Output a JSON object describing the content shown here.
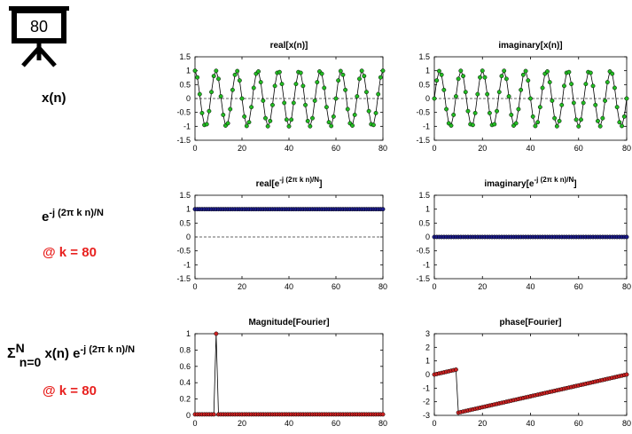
{
  "board_number": "80",
  "labels": {
    "xn": "x(n)",
    "exp_base": "e",
    "exp_sup": "-j (2π k n)/N",
    "k_label": "@ k = 80",
    "sum_sigma": "Σ",
    "sum_top": "N",
    "sum_bottom": "n=0",
    "sum_term": "x(n) e",
    "sum_sup": "-j (2π k n)/N",
    "k_label2": "@ k = 80"
  },
  "colors": {
    "green_marker": "#22bb22",
    "blue_marker": "#1c1c8a",
    "red_marker": "#cc2222",
    "red_text": "#e8211f"
  },
  "chart_data": [
    {
      "type": "line",
      "title": "real[x(n)]",
      "xlim": [
        0,
        80
      ],
      "ylim": [
        -1.5,
        1.5
      ],
      "xticks": [
        "0",
        "20",
        "40",
        "60",
        "80"
      ],
      "yticks": [
        "1.5",
        "1",
        "0.5",
        "0",
        "-0.5",
        "-1",
        "-1.5"
      ],
      "series": [
        {
          "values_rule": "cos(2*pi*9*n/80)",
          "n": [
            0,
            80
          ],
          "marker": "green"
        }
      ],
      "reference_line": 0
    },
    {
      "type": "line",
      "title": "imaginary[x(n)]",
      "xlim": [
        0,
        80
      ],
      "ylim": [
        -1.5,
        1.5
      ],
      "xticks": [
        "0",
        "20",
        "40",
        "60",
        "80"
      ],
      "yticks": [
        "1.5",
        "1",
        "0.5",
        "0",
        "-0.5",
        "-1",
        "-1.5"
      ],
      "series": [
        {
          "values_rule": "sin(2*pi*9*n/80)",
          "n": [
            0,
            80
          ],
          "marker": "green"
        }
      ],
      "reference_line": 0
    },
    {
      "type": "line",
      "title_base": "real[e",
      "title_sup": "-j (2π k n)/N",
      "title_end": "]",
      "xlim": [
        0,
        80
      ],
      "ylim": [
        -1.5,
        1.5
      ],
      "xticks": [
        "0",
        "20",
        "40",
        "60",
        "80"
      ],
      "yticks": [
        "1.5",
        "1",
        "0.5",
        "0",
        "-0.5",
        "-1",
        "-1.5"
      ],
      "series": [
        {
          "values_rule": "constant 1",
          "n": [
            0,
            80
          ],
          "marker": "blue"
        }
      ],
      "reference_line": 0
    },
    {
      "type": "line",
      "title_base": "imaginary[e",
      "title_sup": "-j (2π k n)/N",
      "title_end": "]",
      "xlim": [
        0,
        80
      ],
      "ylim": [
        -1.5,
        1.5
      ],
      "xticks": [
        "0",
        "20",
        "40",
        "60",
        "80"
      ],
      "yticks": [
        "1.5",
        "1",
        "0.5",
        "0",
        "-0.5",
        "-1",
        "-1.5"
      ],
      "series": [
        {
          "values_rule": "constant 0",
          "n": [
            0,
            80
          ],
          "marker": "blue"
        }
      ]
    },
    {
      "type": "line",
      "title": "Magnitude[Fourier]",
      "xlim": [
        0,
        80
      ],
      "ylim": [
        0,
        1
      ],
      "xticks": [
        "0",
        "20",
        "40",
        "60",
        "80"
      ],
      "yticks": [
        "1",
        "0.8",
        "0.6",
        "0.4",
        "0.2",
        "0"
      ],
      "series": [
        {
          "values_rule": "|DFT of x(n)|/N, peak 1 at k=9",
          "n": [
            0,
            80
          ],
          "marker": "red"
        }
      ]
    },
    {
      "type": "line",
      "title": "phase[Fourier]",
      "xlim": [
        0,
        80
      ],
      "ylim": [
        -3,
        3
      ],
      "xticks": [
        "0",
        "20",
        "40",
        "60",
        "80"
      ],
      "yticks": [
        "3",
        "2",
        "1",
        "0",
        "-1",
        "-2",
        "-3"
      ],
      "series": [
        {
          "values_rule": "phase of DFT, ramp 0→0.35 then jump to -2.8 at k=10, linear to 0 at 80",
          "n": [
            0,
            80
          ],
          "marker": "red"
        }
      ]
    }
  ]
}
